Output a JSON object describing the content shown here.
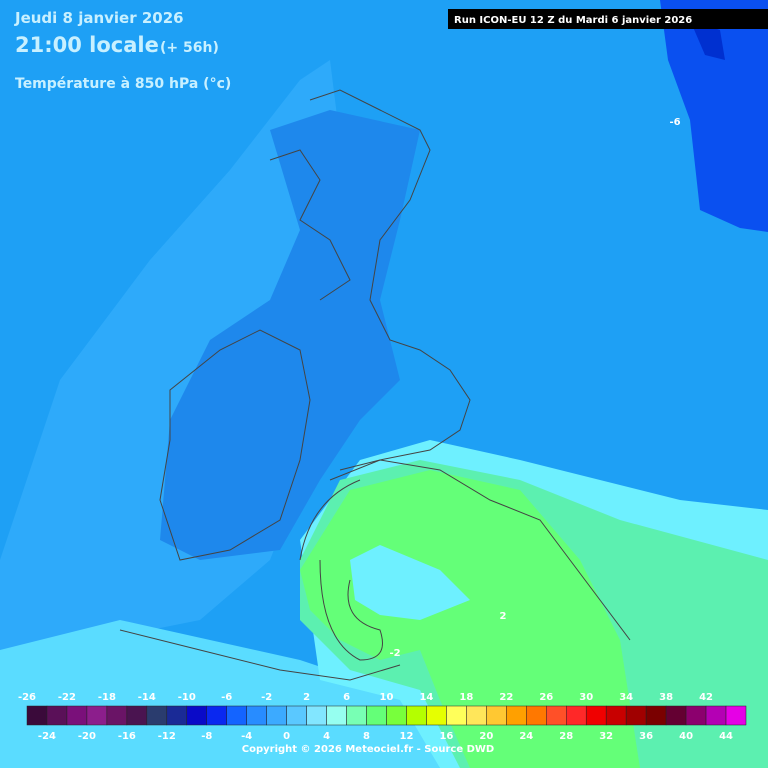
{
  "header": {
    "date": "Jeudi 8 janvier 2026",
    "time": "21:00 locale",
    "lead": "(+ 56h)",
    "variable": "Température à 850 hPa (°c)"
  },
  "run": "Run ICON-EU 12 Z du Mardi 6 janvier 2026",
  "contour_labels": [
    -6,
    -2,
    2
  ],
  "legend": {
    "stops": [
      -26,
      -24,
      -22,
      -20,
      -18,
      -16,
      -14,
      -12,
      -10,
      -8,
      -6,
      -4,
      -2,
      0,
      2,
      4,
      6,
      8,
      10,
      12,
      14,
      16,
      18,
      20,
      22,
      24,
      26,
      28,
      30,
      32,
      34,
      36,
      38,
      40,
      42,
      44
    ],
    "colors": [
      "#3a0a3a",
      "#5a1058",
      "#7a107a",
      "#8c1e8c",
      "#6a1466",
      "#4a1450",
      "#2a3c6e",
      "#1a2a96",
      "#0a0ac8",
      "#0a28f0",
      "#1464ff",
      "#288cff",
      "#3caaff",
      "#5ac8ff",
      "#82e6ff",
      "#96fff0",
      "#78ffb4",
      "#64ff78",
      "#78ff3c",
      "#b4ff00",
      "#e6ff00",
      "#ffff5a",
      "#ffe65a",
      "#ffc832",
      "#ffa000",
      "#ff7800",
      "#ff5028",
      "#ff2828",
      "#f00000",
      "#c80000",
      "#a00000",
      "#7a0000",
      "#640032",
      "#8c006e",
      "#b400b4",
      "#e600e6",
      "#ff46ff",
      "#ff8cff"
    ]
  },
  "copyright": "Copyright © 2026 Meteociel.fr - Source DWD"
}
